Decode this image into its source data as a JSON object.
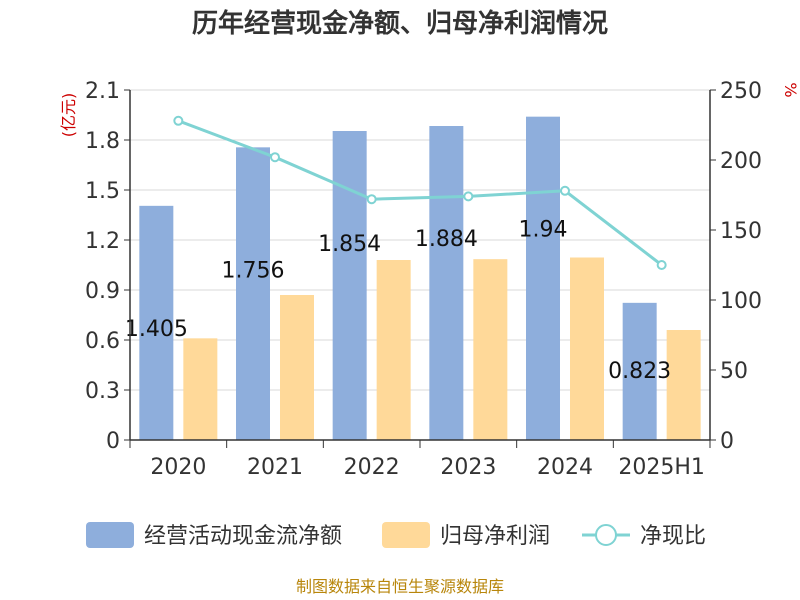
{
  "chart_data": {
    "type": "bar",
    "title": "历年经营现金净额、归母净利润情况",
    "categories": [
      "2020",
      "2021",
      "2022",
      "2023",
      "2024",
      "2025H1"
    ],
    "series": [
      {
        "name": "经营活动现金流净额",
        "type": "bar",
        "axis": "left",
        "color": "#8eaedc",
        "values": [
          1.405,
          1.756,
          1.854,
          1.884,
          1.94,
          0.823
        ]
      },
      {
        "name": "归母净利润",
        "type": "bar",
        "axis": "left",
        "color": "#ffd999",
        "values": [
          0.61,
          0.87,
          1.08,
          1.085,
          1.095,
          0.66
        ]
      },
      {
        "name": "净现比",
        "type": "line",
        "axis": "right",
        "color": "#7fd3d3",
        "values": [
          228,
          202,
          172,
          174,
          178,
          125
        ]
      }
    ],
    "data_labels": [
      "1.405",
      "1.756",
      "1.854",
      "1.884",
      "1.94",
      "0.823"
    ],
    "y_left": {
      "unit": "(亿元)",
      "min": 0,
      "max": 2.1,
      "ticks": [
        "0",
        "0.3",
        "0.6",
        "0.9",
        "1.2",
        "1.5",
        "1.8",
        "2.1"
      ]
    },
    "y_right": {
      "unit": "%",
      "min": 0,
      "max": 250,
      "ticks": [
        "0",
        "50",
        "100",
        "150",
        "200",
        "250"
      ]
    },
    "grid": true,
    "legend_position": "bottom",
    "source": "制图数据来自恒生聚源数据库"
  }
}
